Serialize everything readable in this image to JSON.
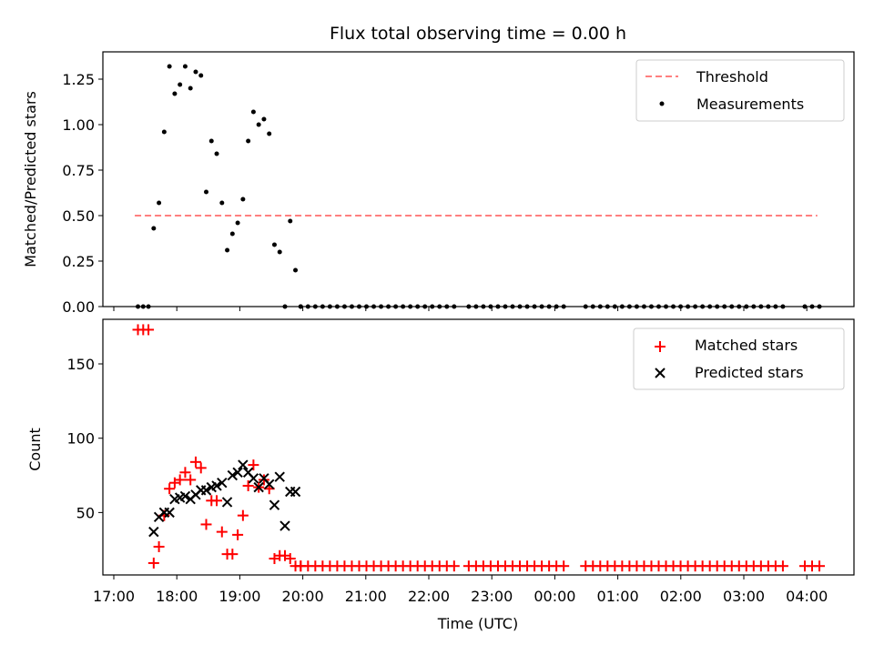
{
  "chart_data": [
    {
      "type": "scatter",
      "title": "Flux total observing time = 0.00 h",
      "xlabel": "",
      "ylabel": "Matched/Predicted stars",
      "xlim": [
        17.0,
        4.8
      ],
      "ylim": [
        0.0,
        1.4
      ],
      "yticks": [
        0.0,
        0.25,
        0.5,
        0.75,
        1.0,
        1.25
      ],
      "ytick_labels": [
        "0.00",
        "0.25",
        "0.50",
        "0.75",
        "1.00",
        "1.25"
      ],
      "legend": [
        {
          "label": "Threshold",
          "style": "dashed-line",
          "color": "#ff7f7f"
        },
        {
          "label": "Measurements",
          "style": "dot",
          "color": "#000000"
        }
      ],
      "threshold": {
        "y": 0.5,
        "x_start": "17:20",
        "x_end": "04:10",
        "color": "#ff7f7f"
      },
      "measurements": {
        "x": [
          "17:23",
          "17:28",
          "17:33",
          "17:38",
          "17:43",
          "17:48",
          "17:53",
          "17:58",
          "18:03",
          "18:08",
          "18:13",
          "18:18",
          "18:23",
          "18:28",
          "18:33",
          "18:38",
          "18:43",
          "18:48",
          "18:53",
          "18:58",
          "19:03",
          "19:08",
          "19:13",
          "19:18",
          "19:23",
          "19:28",
          "19:33",
          "19:38",
          "19:43",
          "19:48",
          "19:53",
          "19:58"
        ],
        "y": [
          0.0,
          0.0,
          0.0,
          0.43,
          0.57,
          0.96,
          1.32,
          1.17,
          1.22,
          1.32,
          1.2,
          1.29,
          1.27,
          0.63,
          0.91,
          0.84,
          0.57,
          0.31,
          0.4,
          0.46,
          0.59,
          0.91,
          1.07,
          1.0,
          1.03,
          0.95,
          0.34,
          0.3,
          0.0,
          0.47,
          0.2,
          0.0
        ]
      }
    },
    {
      "type": "scatter",
      "title": "",
      "xlabel": "Time (UTC)",
      "ylabel": "Count",
      "xlim": [
        17.0,
        4.8
      ],
      "ylim": [
        8,
        180
      ],
      "yticks": [
        50,
        100,
        150
      ],
      "ytick_labels": [
        "50",
        "100",
        "150"
      ],
      "xtick_labels": [
        "17:00",
        "18:00",
        "19:00",
        "20:00",
        "21:00",
        "22:00",
        "23:00",
        "00:00",
        "01:00",
        "02:00",
        "03:00",
        "04:00"
      ],
      "legend": [
        {
          "label": "Matched stars",
          "style": "plus",
          "color": "#ff0000"
        },
        {
          "label": "Predicted stars",
          "style": "x",
          "color": "#000000"
        }
      ],
      "series": [
        {
          "name": "Matched stars",
          "x": [
            "17:23",
            "17:28",
            "17:33",
            "17:38",
            "17:43",
            "17:48",
            "17:53",
            "17:58",
            "18:03",
            "18:08",
            "18:13",
            "18:18",
            "18:23",
            "18:28",
            "18:33",
            "18:38",
            "18:43",
            "18:48",
            "18:53",
            "18:58",
            "19:03",
            "19:08",
            "19:13",
            "19:18",
            "19:23",
            "19:28",
            "19:33",
            "19:38",
            "19:43",
            "19:48",
            "19:53",
            "19:58"
          ],
          "values": [
            173,
            173,
            173,
            16,
            27,
            48,
            66,
            70,
            72,
            77,
            72,
            84,
            80,
            42,
            58,
            58,
            37,
            22,
            22,
            35,
            48,
            68,
            82,
            67,
            72,
            66,
            19,
            21,
            21,
            19,
            14,
            14
          ]
        },
        {
          "name": "Predicted stars",
          "x": [
            "17:38",
            "17:43",
            "17:48",
            "17:53",
            "17:58",
            "18:03",
            "18:08",
            "18:13",
            "18:18",
            "18:23",
            "18:28",
            "18:33",
            "18:38",
            "18:43",
            "18:48",
            "18:53",
            "18:58",
            "19:03",
            "19:08",
            "19:13",
            "19:18",
            "19:23",
            "19:28",
            "19:33",
            "19:38",
            "19:43",
            "19:48",
            "19:53"
          ],
          "values": [
            37,
            47,
            50,
            50,
            59,
            60,
            61,
            59,
            62,
            65,
            65,
            67,
            68,
            70,
            57,
            75,
            77,
            82,
            77,
            73,
            67,
            73,
            69,
            55,
            74,
            41,
            64,
            64
          ]
        }
      ],
      "idle": {
        "x_start": "19:58",
        "x_end": "04:12",
        "matched_value": 14,
        "ratio_value": 0.0,
        "sample_count": 72
      }
    }
  ]
}
